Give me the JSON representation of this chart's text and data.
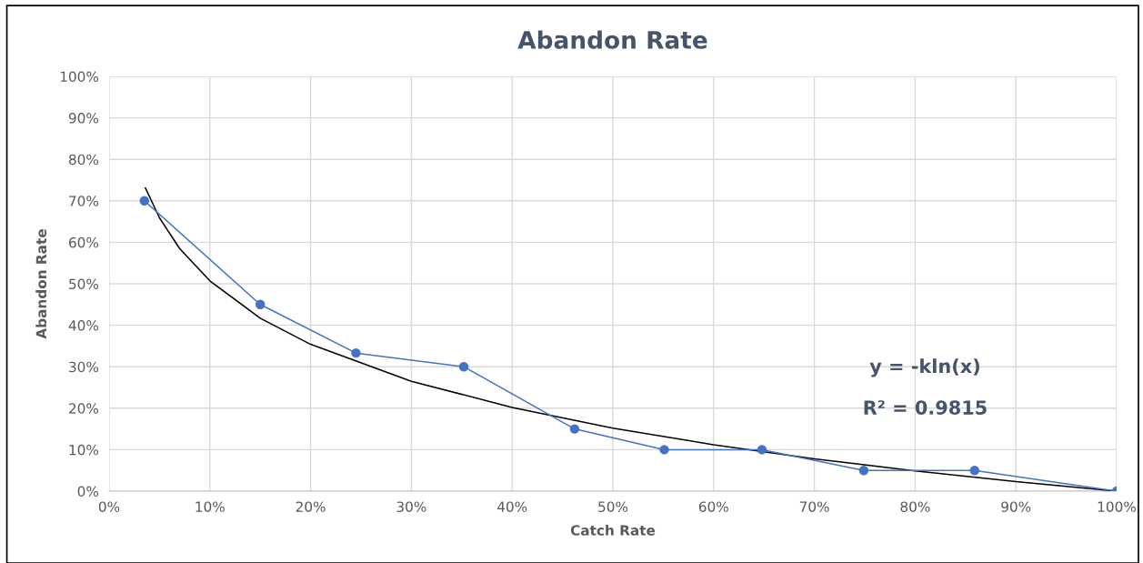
{
  "chart_data": {
    "type": "line",
    "title": "Abandon Rate",
    "xlabel": "Catch Rate",
    "ylabel": "Abandon Rate",
    "xlim": [
      0,
      100
    ],
    "ylim": [
      0,
      100
    ],
    "xticks": [
      {
        "value": 0,
        "label": "0%"
      },
      {
        "value": 10,
        "label": "10%"
      },
      {
        "value": 20,
        "label": "20%"
      },
      {
        "value": 30,
        "label": "30%"
      },
      {
        "value": 40,
        "label": "40%"
      },
      {
        "value": 50,
        "label": "50%"
      },
      {
        "value": 60,
        "label": "60%"
      },
      {
        "value": 70,
        "label": "70%"
      },
      {
        "value": 80,
        "label": "80%"
      },
      {
        "value": 90,
        "label": "90%"
      },
      {
        "value": 100,
        "label": "100%"
      }
    ],
    "yticks": [
      {
        "value": 0,
        "label": "0%"
      },
      {
        "value": 10,
        "label": "10%"
      },
      {
        "value": 20,
        "label": "20%"
      },
      {
        "value": 30,
        "label": "30%"
      },
      {
        "value": 40,
        "label": "40%"
      },
      {
        "value": 50,
        "label": "50%"
      },
      {
        "value": 60,
        "label": "60%"
      },
      {
        "value": 70,
        "label": "70%"
      },
      {
        "value": 80,
        "label": "80%"
      },
      {
        "value": 90,
        "label": "90%"
      },
      {
        "value": 100,
        "label": "100%"
      }
    ],
    "grid": true,
    "series": [
      {
        "color": "#4472c4",
        "marker": "circle",
        "line_style": "solid",
        "x": [
          3.5,
          15,
          24.5,
          35.2,
          46.2,
          55.1,
          64.8,
          74.9,
          85.9,
          100
        ],
        "values": [
          70,
          45,
          33.3,
          30,
          15,
          10,
          10,
          5,
          5,
          0
        ]
      },
      {
        "color": "#000000",
        "marker": "none",
        "line_style": "solid",
        "x": [
          3.6,
          5,
          7,
          10,
          15,
          20,
          30,
          40,
          50,
          60,
          70,
          80,
          90,
          100
        ],
        "values": [
          73.1,
          65.9,
          58.5,
          50.7,
          41.7,
          35.4,
          26.5,
          20.2,
          15.2,
          11.2,
          7.8,
          4.9,
          2.3,
          0
        ]
      }
    ],
    "annotations": [
      "y = -kln(x)",
      "R² = 0.9815"
    ]
  }
}
